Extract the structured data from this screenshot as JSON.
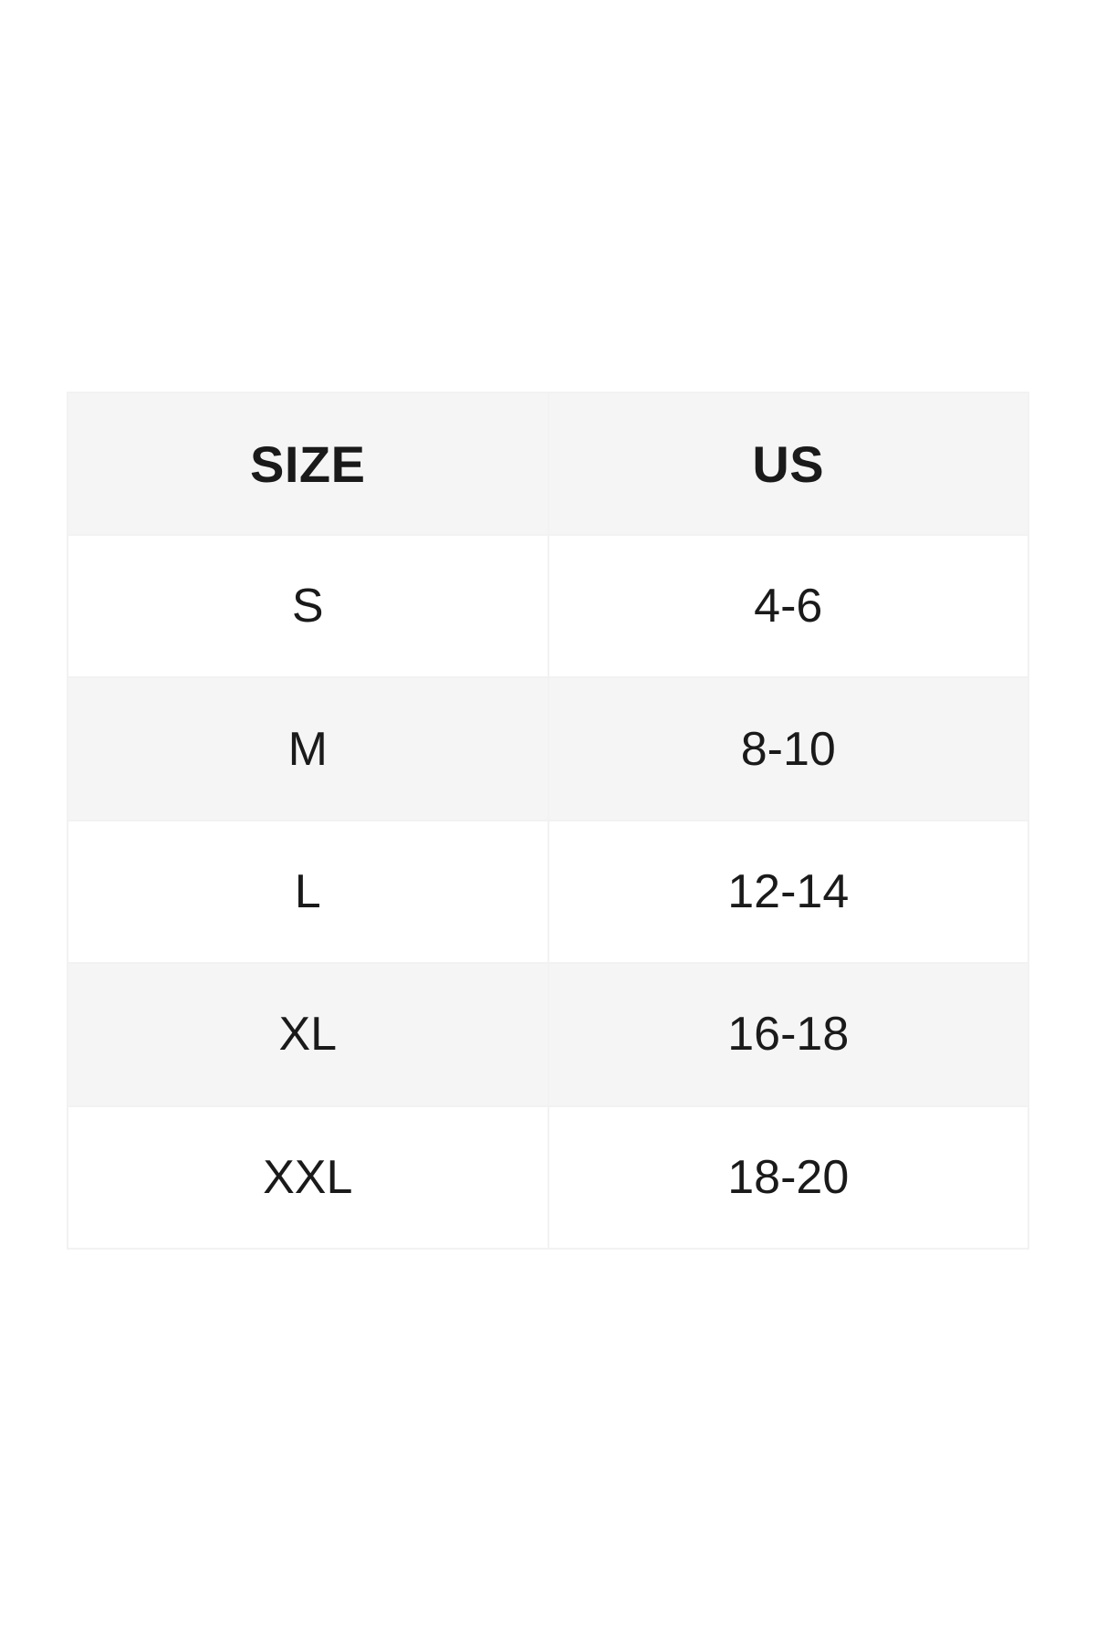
{
  "size_chart": {
    "columns": [
      {
        "label": "SIZE"
      },
      {
        "label": "US"
      }
    ],
    "rows": [
      {
        "size": "S",
        "us": "4-6"
      },
      {
        "size": "M",
        "us": "8-10"
      },
      {
        "size": "L",
        "us": "12-14"
      },
      {
        "size": "XL",
        "us": "16-18"
      },
      {
        "size": "XXL",
        "us": "18-20"
      }
    ]
  },
  "colors": {
    "page_background": "#ffffff",
    "row_shaded": "#f5f5f5",
    "cell_border": "#f2f2f2",
    "text": "#1a1a1a"
  }
}
